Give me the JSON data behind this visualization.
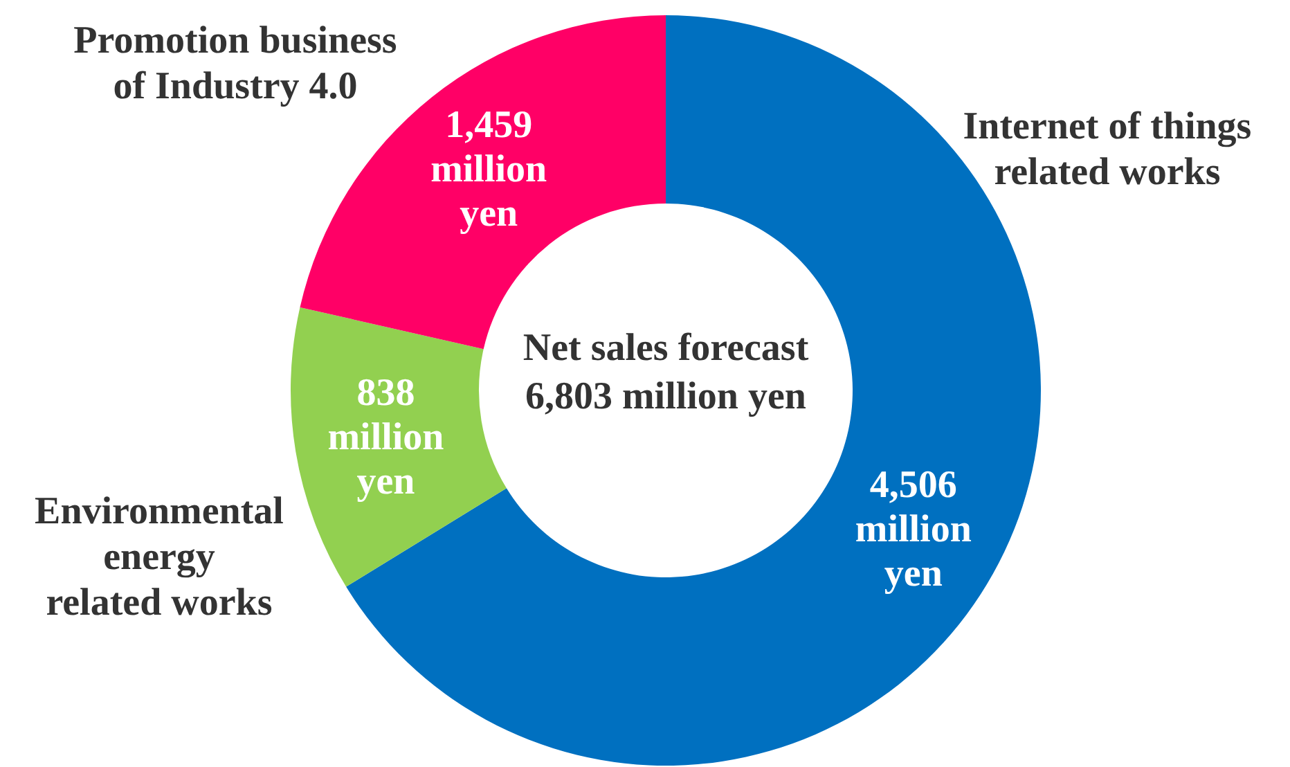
{
  "chart_data": {
    "type": "donut",
    "title": "Net sales forecast",
    "subtitle": "6,803 million yen",
    "categories": [
      "Internet of things related works",
      "Environmental energy related works",
      "Promotion business of Industry 4.0"
    ],
    "values": [
      4506,
      838,
      1459
    ],
    "colors": [
      "#0070c0",
      "#92d050",
      "#ff0066"
    ],
    "value_labels": [
      "4,506 million yen",
      "838 million yen",
      "1,459 million yen"
    ]
  }
}
